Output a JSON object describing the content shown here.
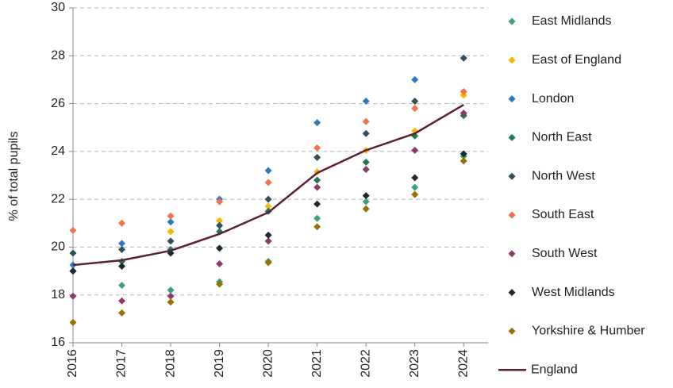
{
  "chart_data": {
    "type": "scatter",
    "y_label": "% of total pupils",
    "x": [
      2016,
      2017,
      2018,
      2019,
      2020,
      2021,
      2022,
      2023,
      2024
    ],
    "xlim": [
      2016,
      2024.5
    ],
    "xticks": [
      2016,
      2017,
      2018,
      2019,
      2020,
      2021,
      2022,
      2023,
      2024
    ],
    "ylim": [
      16,
      30
    ],
    "yticks": [
      16,
      18,
      20,
      22,
      24,
      26,
      28,
      30
    ],
    "grid": true,
    "legend": "right",
    "series": [
      {
        "name": "East Midlands",
        "color": "#3aa37a",
        "mark": "diamond",
        "values": [
          19.0,
          18.4,
          18.2,
          18.55,
          19.4,
          21.2,
          21.9,
          22.5,
          23.8
        ]
      },
      {
        "name": "East of England",
        "color": "#f5b800",
        "mark": "diamond",
        "values": [
          19.0,
          19.4,
          20.65,
          21.1,
          21.7,
          23.15,
          24.05,
          24.85,
          26.35
        ]
      },
      {
        "name": "London",
        "color": "#2a7ac0",
        "mark": "diamond",
        "values": [
          19.25,
          20.15,
          21.05,
          22.0,
          23.2,
          25.2,
          26.1,
          27.0,
          25.5
        ]
      },
      {
        "name": "North East",
        "color": "#1e7a55",
        "mark": "diamond",
        "values": [
          19.0,
          19.4,
          19.9,
          20.65,
          21.5,
          22.8,
          23.55,
          24.65,
          25.5
        ]
      },
      {
        "name": "North West",
        "color": "#2f4f5a",
        "mark": "diamond",
        "values": [
          19.75,
          19.9,
          20.25,
          20.9,
          22.0,
          23.75,
          24.75,
          26.1,
          27.9
        ]
      },
      {
        "name": "South East",
        "color": "#f0734a",
        "mark": "diamond",
        "values": [
          20.7,
          21.0,
          21.3,
          21.9,
          22.7,
          24.15,
          25.25,
          25.8,
          26.5
        ]
      },
      {
        "name": "South West",
        "color": "#8b3a6b",
        "mark": "diamond",
        "values": [
          17.95,
          17.75,
          17.95,
          19.3,
          20.25,
          22.5,
          23.25,
          24.05,
          25.6
        ]
      },
      {
        "name": "West Midlands",
        "color": "#1d2b30",
        "mark": "diamond",
        "values": [
          19.0,
          19.2,
          19.75,
          19.95,
          20.5,
          21.8,
          22.15,
          22.9,
          23.9
        ]
      },
      {
        "name": "Yorkshire & Humber",
        "color": "#9a7000",
        "mark": "diamond",
        "values": [
          16.85,
          17.25,
          17.7,
          18.45,
          19.35,
          20.85,
          21.6,
          22.2,
          23.6
        ]
      },
      {
        "name": "England",
        "color": "#5a1f3a",
        "mark": "line",
        "values": [
          19.25,
          19.45,
          19.85,
          20.55,
          21.45,
          23.1,
          24.05,
          24.75,
          25.95
        ]
      }
    ]
  }
}
